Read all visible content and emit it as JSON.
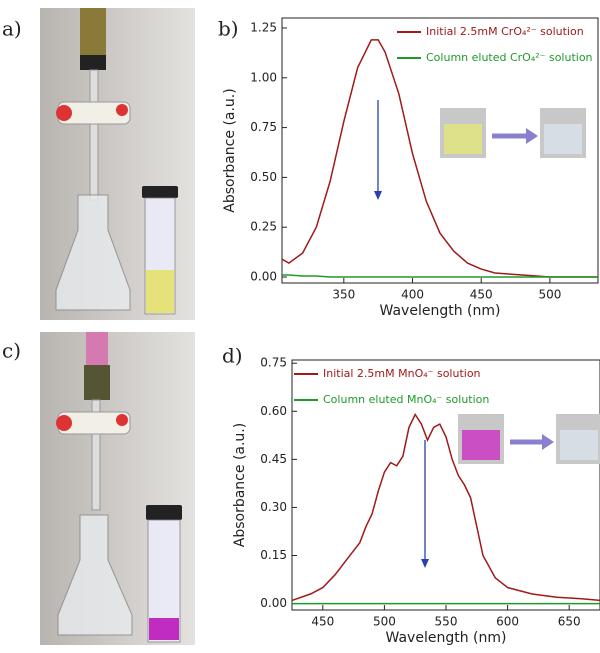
{
  "photos": [
    {
      "label": "a)"
    },
    {
      "label": "c)"
    }
  ],
  "chart_data": [
    {
      "type": "line",
      "panel": "b)",
      "xlabel": "Wavelength (nm)",
      "ylabel": "Absorbance (a.u.)",
      "x": [
        305,
        310,
        320,
        330,
        340,
        350,
        360,
        370,
        375,
        380,
        390,
        400,
        410,
        420,
        430,
        440,
        450,
        460,
        480,
        500,
        535
      ],
      "series": [
        {
          "name": "Initial 2.5mM CrO₄²⁻ solution",
          "color": "#a01a1a",
          "values": [
            0.09,
            0.07,
            0.12,
            0.25,
            0.48,
            0.78,
            1.05,
            1.19,
            1.19,
            1.13,
            0.92,
            0.62,
            0.38,
            0.22,
            0.13,
            0.07,
            0.04,
            0.02,
            0.01,
            0,
            0
          ]
        },
        {
          "name": "Column eluted CrO₄²⁻ solution",
          "color": "#1f9a2a",
          "values": [
            0.01,
            0.01,
            0.005,
            0.005,
            0,
            0,
            0,
            0,
            0,
            0,
            0,
            0,
            0,
            0,
            0,
            0,
            0,
            0,
            0,
            0,
            0
          ]
        }
      ],
      "xlim": [
        305,
        535
      ],
      "ylim": [
        -0.03,
        1.3
      ],
      "xticks": [
        350,
        400,
        450,
        500
      ],
      "yticks": [
        {
          "value": 0,
          "label": "0.00"
        },
        {
          "value": 0.25,
          "label": "0.25"
        },
        {
          "value": 0.5,
          "label": "0.50"
        },
        {
          "value": 0.75,
          "label": "0.75"
        },
        {
          "value": 1,
          "label": "1.00"
        },
        {
          "value": 1.25,
          "label": "1.25"
        }
      ],
      "legend": "upper right"
    },
    {
      "type": "line",
      "panel": "d)",
      "xlabel": "Wavelength (nm)",
      "ylabel": "Absorbance (a.u.)",
      "x": [
        425,
        440,
        450,
        460,
        470,
        480,
        485,
        490,
        495,
        500,
        505,
        510,
        515,
        520,
        525,
        530,
        535,
        540,
        545,
        550,
        555,
        560,
        565,
        570,
        575,
        580,
        590,
        600,
        620,
        640,
        660,
        675
      ],
      "series": [
        {
          "name": "Initial 2.5mM MnO₄⁻ solution",
          "color": "#a01a1a",
          "values": [
            0.01,
            0.03,
            0.05,
            0.09,
            0.14,
            0.19,
            0.24,
            0.28,
            0.35,
            0.41,
            0.44,
            0.43,
            0.46,
            0.55,
            0.59,
            0.56,
            0.51,
            0.55,
            0.56,
            0.52,
            0.45,
            0.4,
            0.37,
            0.33,
            0.24,
            0.15,
            0.08,
            0.05,
            0.03,
            0.02,
            0.015,
            0.01
          ]
        },
        {
          "name": "Column eluted MnO₄⁻ solution",
          "color": "#1f9a2a",
          "values": [
            0,
            0,
            0,
            0,
            0,
            0,
            0,
            0,
            0,
            0,
            0,
            0,
            0,
            0,
            0,
            0,
            0,
            0,
            0,
            0,
            0,
            0,
            0,
            0,
            0,
            0,
            0,
            0,
            0,
            0,
            0,
            0
          ]
        }
      ],
      "xlim": [
        425,
        675
      ],
      "ylim": [
        -0.02,
        0.76
      ],
      "xticks": [
        450,
        500,
        550,
        600,
        650
      ],
      "yticks": [
        {
          "value": 0,
          "label": "0.00"
        },
        {
          "value": 0.15,
          "label": "0.15"
        },
        {
          "value": 0.3,
          "label": "0.30"
        },
        {
          "value": 0.45,
          "label": "0.45"
        },
        {
          "value": 0.6,
          "label": "0.60"
        },
        {
          "value": 0.75,
          "label": "0.75"
        }
      ],
      "legend": "upper left"
    }
  ]
}
